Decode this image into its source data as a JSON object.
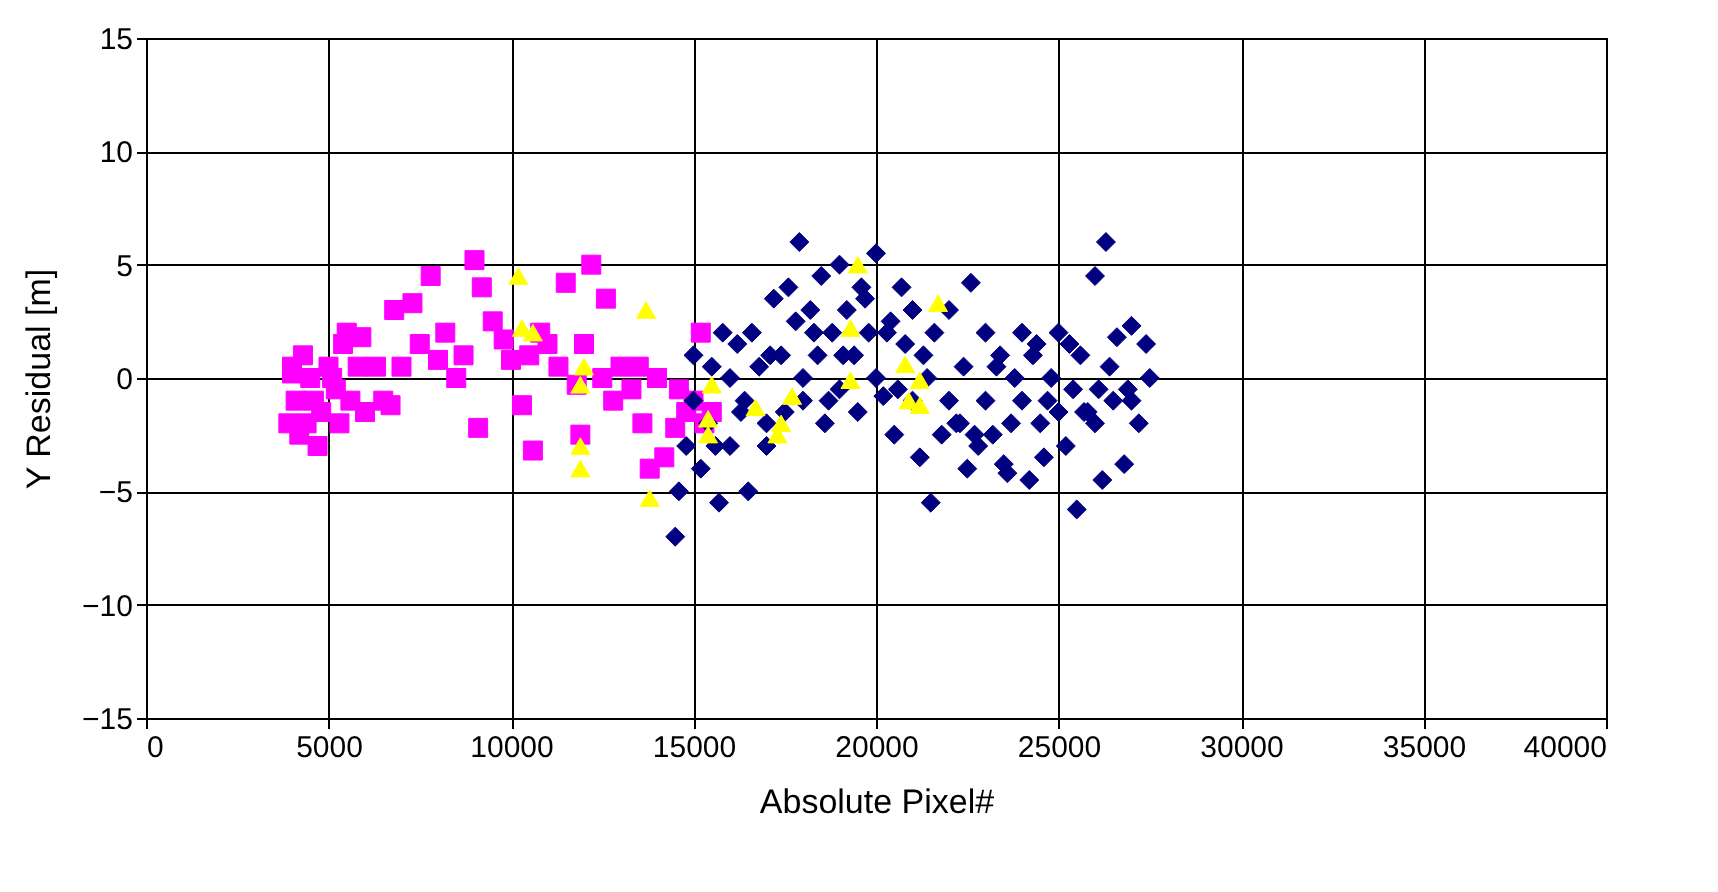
{
  "chart_data": {
    "type": "scatter",
    "xlabel": "Absolute Pixel#",
    "ylabel": "Y Residual [m]",
    "xlim": [
      0,
      40000
    ],
    "ylim": [
      -15,
      15
    ],
    "xticks": [
      0,
      5000,
      10000,
      15000,
      20000,
      25000,
      30000,
      35000,
      40000
    ],
    "yticks": [
      -15,
      -10,
      -5,
      0,
      5,
      10,
      15
    ],
    "grid": true,
    "series": [
      {
        "color": "#ff00ff",
        "marker": "square",
        "x": [
          3900,
          4100,
          4000,
          4300,
          4500,
          4200,
          4800,
          5000,
          5200,
          4600,
          4400,
          5400,
          5600,
          5800,
          6000,
          5300,
          5500,
          6300,
          6500,
          6800,
          7000,
          7300,
          7500,
          7800,
          8000,
          8200,
          8500,
          8700,
          9000,
          9200,
          9500,
          9800,
          10000,
          10300,
          10600,
          10800,
          11000,
          11300,
          11500,
          11800,
          12000,
          12200,
          12500,
          12800,
          13000,
          13300,
          13500,
          13800,
          14000,
          14200,
          14500,
          14800,
          15000,
          15200,
          15500,
          4000,
          4700,
          5100,
          5900,
          6700,
          9100,
          10500,
          11900,
          12600,
          13600,
          14600,
          15300
        ],
        "values": [
          -2,
          -1,
          0.5,
          1,
          0,
          -2.5,
          -1.5,
          0.5,
          -0.5,
          -1,
          -2,
          1.5,
          -1,
          0.5,
          -1.5,
          -2,
          2,
          0.5,
          -1,
          3,
          0.5,
          3.3,
          1.5,
          4.5,
          0.8,
          2,
          0,
          1,
          5.2,
          4,
          2.5,
          1.7,
          0.8,
          -1.2,
          -3.2,
          2,
          1.5,
          0.5,
          4.2,
          -0.3,
          1.5,
          5,
          0,
          -1,
          0.5,
          -0.5,
          0.5,
          -4,
          0,
          -3.5,
          -2.2,
          -1.5,
          -1,
          2,
          -1.5,
          0.2,
          -3,
          0,
          1.8,
          -1.2,
          -2.2,
          1,
          -2.5,
          3.5,
          -2,
          -0.5,
          -2
        ]
      },
      {
        "color": "#000080",
        "marker": "diamond",
        "x": [
          14500,
          14600,
          14800,
          15000,
          15000,
          15200,
          15400,
          15500,
          15700,
          15800,
          16000,
          16000,
          16200,
          16400,
          16500,
          16600,
          16800,
          17000,
          17000,
          17200,
          17400,
          17500,
          17600,
          17800,
          17900,
          18000,
          18000,
          18200,
          18400,
          18500,
          18600,
          18800,
          19000,
          19000,
          19200,
          19400,
          19500,
          19600,
          19800,
          20000,
          20000,
          20200,
          20400,
          20500,
          20600,
          20800,
          21000,
          21000,
          21200,
          21400,
          21500,
          21600,
          21800,
          22000,
          22000,
          22200,
          22400,
          22500,
          22600,
          22800,
          23000,
          23000,
          23200,
          23400,
          23500,
          23600,
          23800,
          24000,
          24000,
          24200,
          24400,
          24500,
          24600,
          24800,
          25000,
          25000,
          25200,
          25400,
          25500,
          25600,
          25800,
          26000,
          26000,
          26200,
          26300,
          26400,
          26500,
          26600,
          26800,
          27000,
          27000,
          27200,
          27400,
          27500,
          15600,
          16300,
          17100,
          18300,
          19100,
          20300,
          21300,
          22300,
          23300,
          24300,
          25300,
          26100,
          26900,
          18700,
          19700,
          20700,
          22700,
          23700,
          24700,
          25700
        ],
        "values": [
          -7,
          -5,
          -3,
          -1,
          1,
          -4,
          -2,
          0.5,
          -5.5,
          2,
          -3,
          0,
          1.5,
          -1,
          -5,
          2,
          0.5,
          -2,
          -3,
          3.5,
          1,
          -1.5,
          4,
          2.5,
          6,
          0,
          -1,
          3,
          1,
          4.5,
          -2,
          2,
          5,
          -0.5,
          3,
          1,
          -1.5,
          4,
          2,
          5.5,
          0,
          -0.8,
          2.5,
          -2.5,
          -0.5,
          1.5,
          3,
          -1,
          -3.5,
          0,
          -5.5,
          2,
          -2.5,
          3,
          -1,
          -2,
          0.5,
          -4,
          4.2,
          -3,
          2,
          -1,
          -2.5,
          1,
          -3.8,
          -4.2,
          0,
          2,
          -1,
          -4.5,
          1.5,
          -2,
          -3.5,
          0,
          2,
          -1.5,
          -3,
          -0.5,
          -5.8,
          1,
          -1.5,
          4.5,
          -2,
          -4.5,
          6,
          0.5,
          -1,
          1.8,
          -3.8,
          2.3,
          -1,
          -2,
          1.5,
          0,
          -3,
          -1.5,
          1,
          2,
          1,
          2,
          1,
          -2,
          0.5,
          1,
          1.5,
          -0.5,
          -0.5,
          -1,
          3.5,
          4,
          -2.5,
          -2,
          -1,
          -1.5
        ]
      },
      {
        "color": "#ffff00",
        "marker": "triangle",
        "x": [
          10200,
          10300,
          10600,
          12000,
          11900,
          11900,
          11900,
          13700,
          13800,
          15500,
          15400,
          15400,
          16700,
          17400,
          17300,
          17700,
          19300,
          19300,
          19500,
          21200,
          20900,
          21200,
          21700,
          20800
        ],
        "values": [
          4.5,
          2.2,
          2,
          0.5,
          -0.3,
          -3,
          -4,
          3,
          -5.3,
          -0.3,
          -1.8,
          -2.5,
          -1.3,
          -2,
          -2.5,
          -0.8,
          2.2,
          -0.1,
          5,
          -0.1,
          -1,
          -1.2,
          3.3,
          0.6
        ]
      }
    ]
  }
}
